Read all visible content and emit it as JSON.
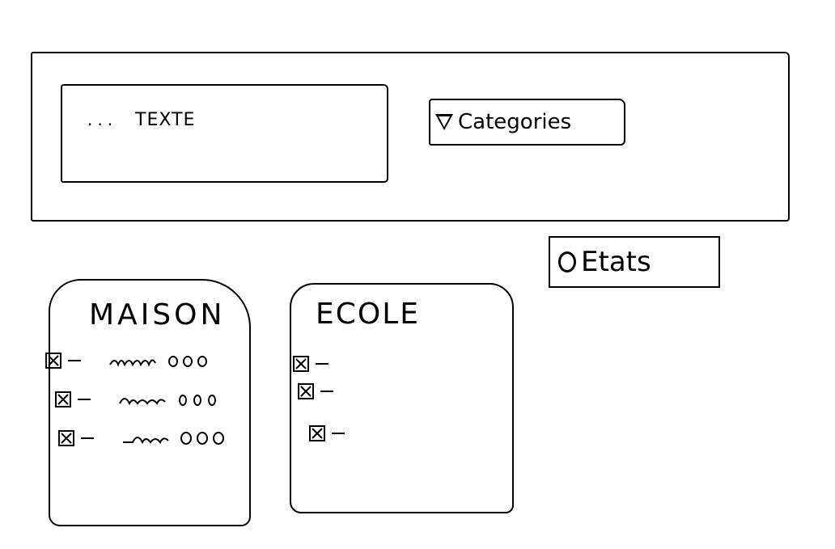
{
  "header": {
    "search": {
      "value": "TEXTE",
      "dots": "..."
    },
    "categories": {
      "label": "Categories"
    }
  },
  "etats": {
    "label": "Etats"
  },
  "cards": [
    {
      "title": "MAISON"
    },
    {
      "title": "ECOLE"
    }
  ]
}
